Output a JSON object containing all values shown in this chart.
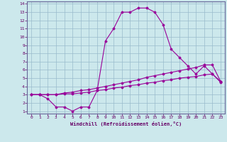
{
  "xlabel": "Windchill (Refroidissement éolien,°C)",
  "background_color": "#cce8ec",
  "line_color": "#990099",
  "grid_color": "#99bbcc",
  "spine_color": "#666699",
  "text_color": "#660066",
  "xlim": [
    -0.5,
    23.5
  ],
  "ylim": [
    0.7,
    14.3
  ],
  "xticks": [
    0,
    1,
    2,
    3,
    4,
    5,
    6,
    7,
    8,
    9,
    10,
    11,
    12,
    13,
    14,
    15,
    16,
    17,
    18,
    19,
    20,
    21,
    22,
    23
  ],
  "yticks": [
    1,
    2,
    3,
    4,
    5,
    6,
    7,
    8,
    9,
    10,
    11,
    12,
    13,
    14
  ],
  "series1_x": [
    0,
    1,
    2,
    3,
    4,
    5,
    6,
    7,
    8,
    9,
    10,
    11,
    12,
    13,
    14,
    15,
    16,
    17,
    18,
    19,
    20,
    21,
    22,
    23
  ],
  "series1_y": [
    3.0,
    3.0,
    2.5,
    1.5,
    1.5,
    1.0,
    1.5,
    1.5,
    3.5,
    9.5,
    11.0,
    13.0,
    13.0,
    13.5,
    13.5,
    13.0,
    11.5,
    8.5,
    7.5,
    6.5,
    5.5,
    6.5,
    5.5,
    4.5
  ],
  "series2_x": [
    0,
    1,
    2,
    3,
    4,
    5,
    6,
    7,
    8,
    9,
    10,
    11,
    12,
    13,
    14,
    15,
    16,
    17,
    18,
    19,
    20,
    21,
    22,
    23
  ],
  "series2_y": [
    3.0,
    3.0,
    3.0,
    3.0,
    3.2,
    3.3,
    3.5,
    3.6,
    3.8,
    4.0,
    4.2,
    4.4,
    4.6,
    4.8,
    5.1,
    5.3,
    5.5,
    5.7,
    5.9,
    6.1,
    6.3,
    6.6,
    6.6,
    4.6
  ],
  "series3_x": [
    0,
    1,
    2,
    3,
    4,
    5,
    6,
    7,
    8,
    9,
    10,
    11,
    12,
    13,
    14,
    15,
    16,
    17,
    18,
    19,
    20,
    21,
    22,
    23
  ],
  "series3_y": [
    3.0,
    3.0,
    3.0,
    3.0,
    3.1,
    3.1,
    3.2,
    3.3,
    3.5,
    3.6,
    3.8,
    3.9,
    4.1,
    4.2,
    4.4,
    4.5,
    4.7,
    4.8,
    5.0,
    5.1,
    5.2,
    5.4,
    5.5,
    4.6
  ]
}
